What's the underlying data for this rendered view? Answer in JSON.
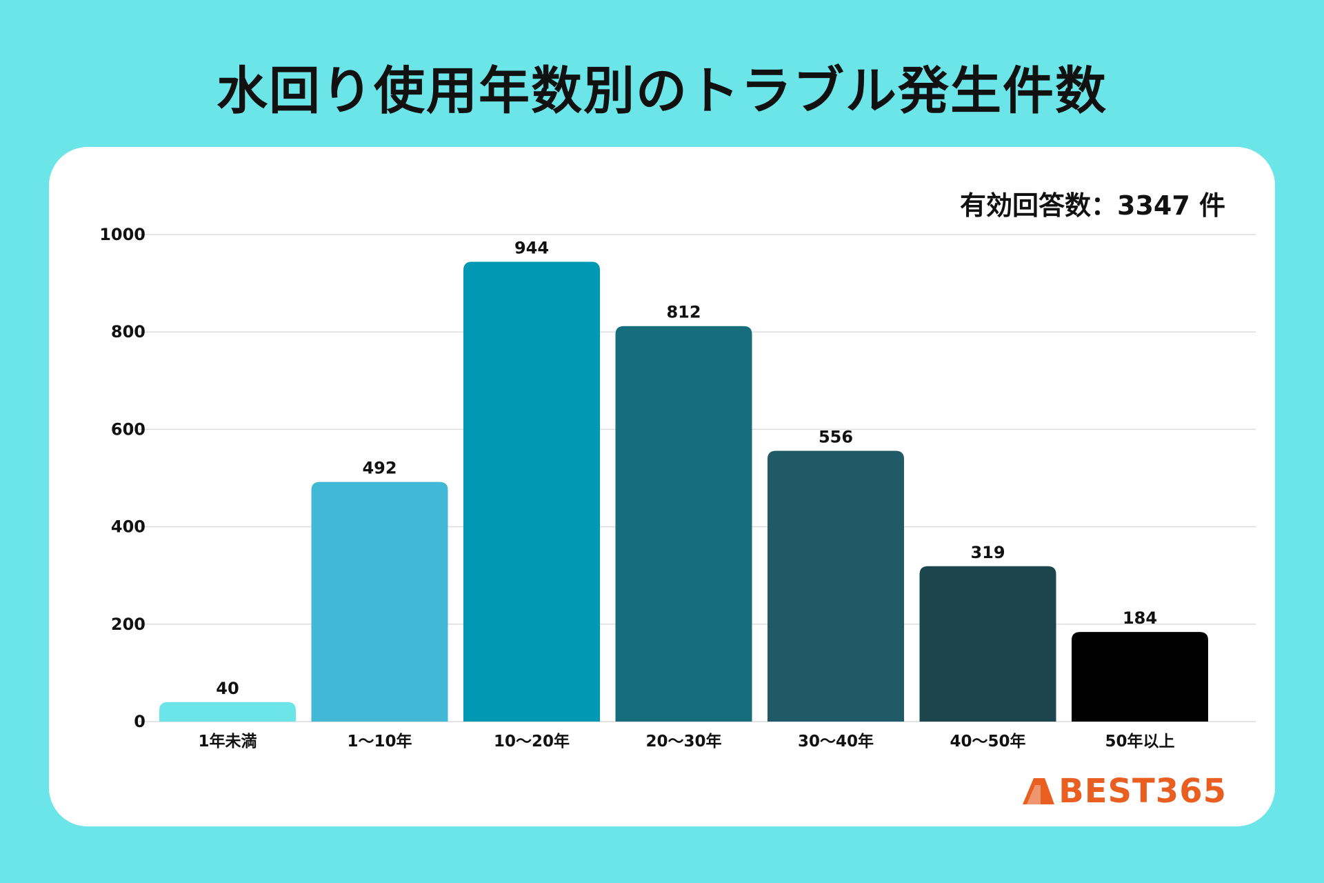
{
  "title": "水回り使用年数別のトラブル発生件数",
  "total_label": "有効回答数：3347 件",
  "brand": {
    "name": "BEST365",
    "color": "#e95f22"
  },
  "chart_data": {
    "type": "bar",
    "categories": [
      "1年未満",
      "1～10年",
      "10～20年",
      "20～30年",
      "30～40年",
      "40～50年",
      "50年以上"
    ],
    "values": [
      40,
      492,
      944,
      812,
      556,
      319,
      184
    ],
    "colors": [
      "#6ce5e8",
      "#41b8d5",
      "#0098b3",
      "#166e7c",
      "#215a67",
      "#1d454d",
      "#000000"
    ],
    "ylim": [
      0,
      1000
    ],
    "yticks": [
      0,
      200,
      400,
      600,
      800,
      1000
    ],
    "grid": true,
    "data_labels": true
  }
}
